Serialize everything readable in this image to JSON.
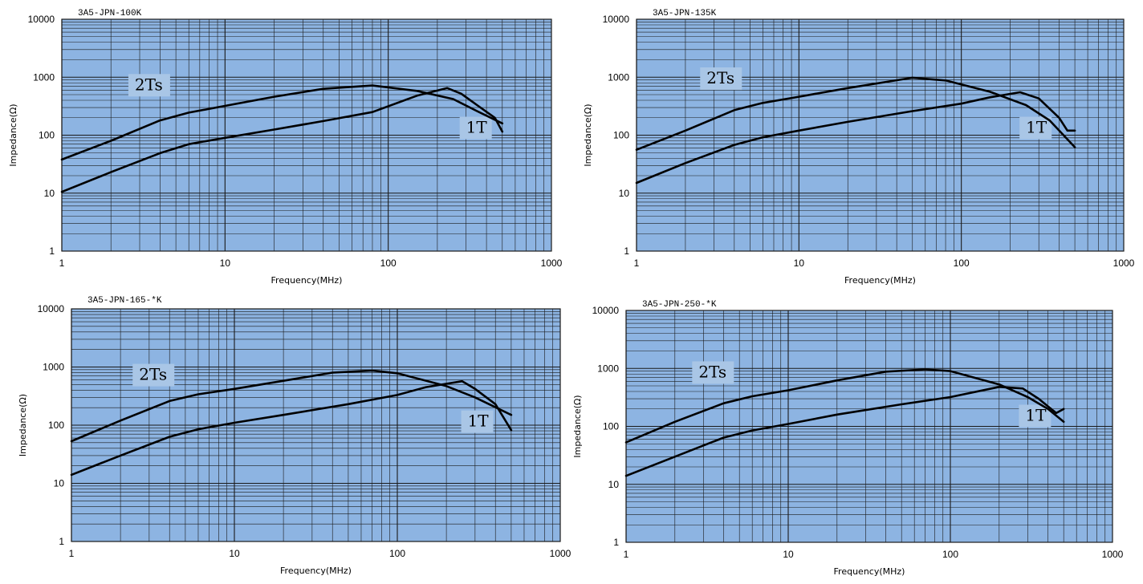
{
  "colors": {
    "plot_bg": "#8db4e2",
    "grid": "#1a1a1a",
    "curve": "#000000",
    "label_bg": "#a9c6e6"
  },
  "chart_data": [
    {
      "type": "line",
      "title": "3A5-JPN-100K",
      "xlabel": "Frequency(MHz)",
      "ylabel": "Impedance(Ω)",
      "xscale": "log",
      "yscale": "log",
      "xlim": [
        1,
        1000
      ],
      "ylim": [
        1,
        10000
      ],
      "x_ticks": [
        "1",
        "10",
        "100",
        "1000"
      ],
      "y_ticks": [
        "1",
        "10",
        "100",
        "1000",
        "10000"
      ],
      "grid": true,
      "annotations": [
        {
          "text": "2Ts",
          "x": 2.8,
          "y": 600
        },
        {
          "text": "1T",
          "x": 300,
          "y": 110
        }
      ],
      "series": [
        {
          "name": "2Ts",
          "x": [
            1,
            2,
            4,
            6,
            10,
            20,
            40,
            80,
            150,
            250,
            350,
            500
          ],
          "y": [
            38,
            80,
            180,
            245,
            320,
            460,
            630,
            720,
            580,
            420,
            260,
            160
          ]
        },
        {
          "name": "1T",
          "x": [
            1,
            2,
            4,
            6,
            10,
            20,
            40,
            80,
            150,
            230,
            280,
            350,
            450,
            500
          ],
          "y": [
            10.5,
            23,
            49,
            70,
            90,
            125,
            175,
            250,
            480,
            650,
            520,
            330,
            200,
            115
          ]
        }
      ]
    },
    {
      "type": "line",
      "title": "3A5-JPN-135K",
      "xlabel": "Frequency(MHz)",
      "ylabel": "Impedance(Ω)",
      "xscale": "log",
      "yscale": "log",
      "xlim": [
        1,
        1000
      ],
      "ylim": [
        1,
        10000
      ],
      "x_ticks": [
        "1",
        "10",
        "100",
        "1000"
      ],
      "y_ticks": [
        "1",
        "10",
        "100",
        "1000",
        "10000"
      ],
      "grid": true,
      "annotations": [
        {
          "text": "2Ts",
          "x": 2.7,
          "y": 780
        },
        {
          "text": "1T",
          "x": 250,
          "y": 110
        }
      ],
      "series": [
        {
          "name": "2Ts",
          "x": [
            1,
            2,
            4,
            6,
            10,
            20,
            50,
            80,
            150,
            250,
            350,
            500
          ],
          "y": [
            56,
            120,
            270,
            360,
            460,
            650,
            980,
            880,
            560,
            330,
            180,
            62
          ]
        },
        {
          "name": "1T",
          "x": [
            1,
            2,
            4,
            6,
            10,
            20,
            50,
            100,
            150,
            230,
            300,
            400,
            450,
            500
          ],
          "y": [
            15,
            33,
            68,
            92,
            120,
            170,
            260,
            350,
            450,
            550,
            430,
            200,
            120,
            120
          ]
        }
      ]
    },
    {
      "type": "line",
      "title": "3A5-JPN-165-*K",
      "xlabel": "Frequency(MHz)",
      "ylabel": "Impedance(Ω)",
      "xscale": "log",
      "yscale": "log",
      "xlim": [
        1,
        1000
      ],
      "ylim": [
        1,
        10000
      ],
      "x_ticks": [
        "1",
        "10",
        "100",
        "1000"
      ],
      "y_ticks": [
        "1",
        "10",
        "100",
        "1000",
        "10000"
      ],
      "grid": true,
      "annotations": [
        {
          "text": "2Ts",
          "x": 2.6,
          "y": 600
        },
        {
          "text": "1T",
          "x": 270,
          "y": 95
        }
      ],
      "series": [
        {
          "name": "2Ts",
          "x": [
            1,
            2,
            4,
            6,
            10,
            20,
            40,
            70,
            100,
            200,
            300,
            500
          ],
          "y": [
            53,
            120,
            260,
            340,
            420,
            580,
            800,
            870,
            780,
            470,
            300,
            150
          ]
        },
        {
          "name": "1T",
          "x": [
            1,
            2,
            4,
            6,
            10,
            20,
            50,
            100,
            150,
            250,
            300,
            400,
            500
          ],
          "y": [
            14,
            30,
            63,
            85,
            110,
            150,
            230,
            330,
            450,
            570,
            420,
            230,
            82
          ]
        }
      ]
    },
    {
      "type": "line",
      "title": "3A5-JPN-250-*K",
      "xlabel": "Frequency(MHz)",
      "ylabel": "Impedance(Ω)",
      "xscale": "log",
      "yscale": "log",
      "xlim": [
        1,
        1000
      ],
      "ylim": [
        1,
        10000
      ],
      "x_ticks": [
        "1",
        "10",
        "100",
        "1000"
      ],
      "y_ticks": [
        "1",
        "10",
        "100",
        "1000",
        "10000"
      ],
      "grid": true,
      "annotations": [
        {
          "text": "2Ts",
          "x": 2.8,
          "y": 700
        },
        {
          "text": "1T",
          "x": 290,
          "y": 125
        }
      ],
      "series": [
        {
          "name": "2Ts",
          "x": [
            1,
            2,
            4,
            6,
            10,
            20,
            40,
            70,
            100,
            200,
            300,
            400,
            500
          ],
          "y": [
            53,
            120,
            250,
            330,
            420,
            620,
            880,
            960,
            900,
            530,
            320,
            200,
            120
          ]
        },
        {
          "name": "1T",
          "x": [
            1,
            2,
            4,
            6,
            10,
            20,
            50,
            100,
            200,
            280,
            350,
            450,
            500
          ],
          "y": [
            14,
            30,
            64,
            85,
            110,
            160,
            240,
            320,
            480,
            450,
            300,
            170,
            200
          ]
        }
      ]
    }
  ]
}
